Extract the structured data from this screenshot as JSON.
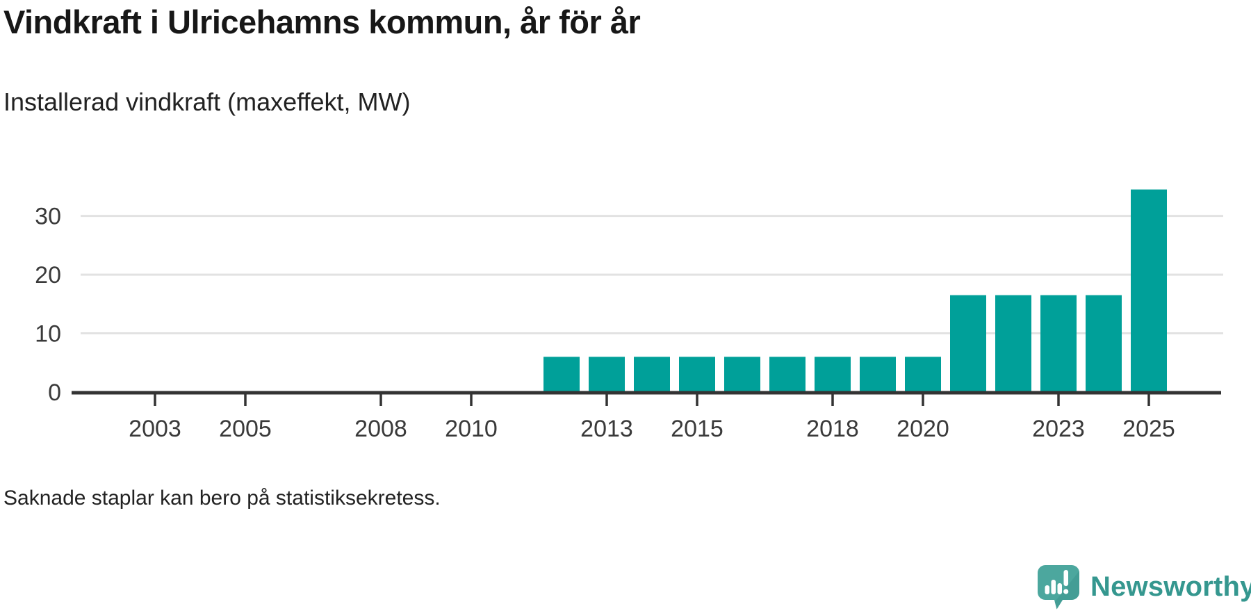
{
  "header": {
    "title": "Vindkraft i Ulricehamns kommun, år för år",
    "subtitle": "Installerad vindkraft (maxeffekt, MW)"
  },
  "footer": {
    "note": "Saknade staplar kan bero på statistiksekretess.",
    "logo_text": "Newsworthy"
  },
  "colors": {
    "bar": "#00a099",
    "grid": "#e2e2e2",
    "axis_line": "#333333",
    "axis_text": "#3a3a3a",
    "logo_bubble": "#4ca79e",
    "logo_bubble_shade": "#3d968e",
    "logo_mark": "#ffffff",
    "logo_text": "#35978f"
  },
  "chart_data": {
    "type": "bar",
    "title": "Vindkraft i Ulricehamns kommun, år för år",
    "subtitle": "Installerad vindkraft (maxeffekt, MW)",
    "xlabel": "",
    "ylabel": "Installerad vindkraft (maxeffekt, MW)",
    "x": [
      2012,
      2013,
      2014,
      2015,
      2016,
      2017,
      2018,
      2019,
      2020,
      2021,
      2022,
      2023,
      2024,
      2025
    ],
    "values": [
      6,
      6,
      6,
      6,
      6,
      6,
      6,
      6,
      6,
      16.5,
      16.5,
      16.5,
      16.5,
      34.5
    ],
    "x_tick_labels": [
      "2003",
      "2005",
      "2008",
      "2010",
      "2013",
      "2015",
      "2018",
      "2020",
      "2023",
      "2025"
    ],
    "y_ticks": [
      0,
      10,
      20,
      30
    ],
    "xlim": [
      2001.2,
      2026.5
    ],
    "ylim": [
      0,
      36
    ],
    "grid": "horizontal-only",
    "legend": "none",
    "note": "Saknade staplar kan bero på statistiksekretess."
  }
}
